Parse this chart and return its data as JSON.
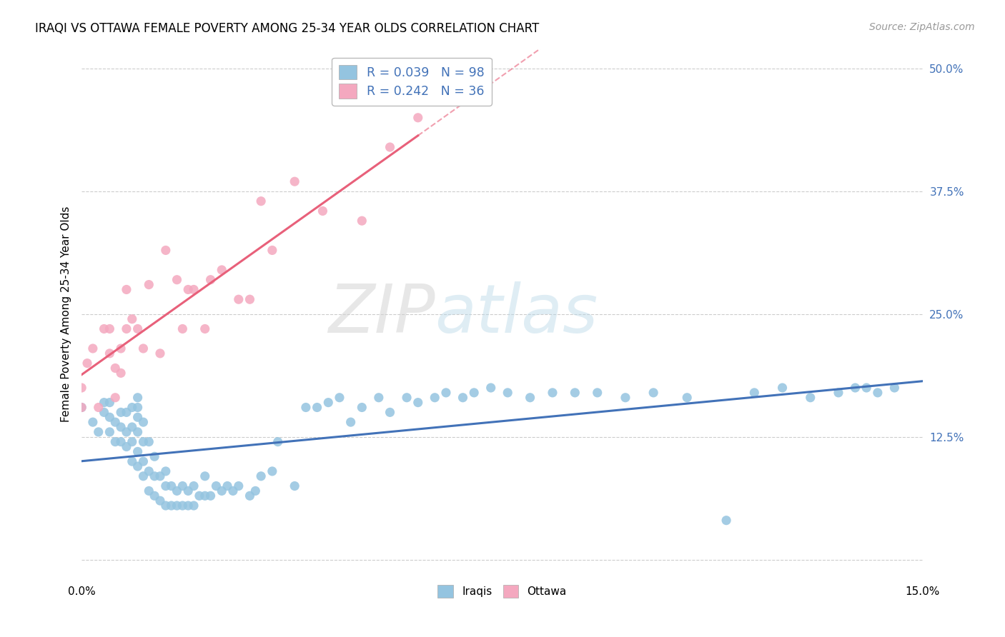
{
  "title": "IRAQI VS OTTAWA FEMALE POVERTY AMONG 25-34 YEAR OLDS CORRELATION CHART",
  "source": "Source: ZipAtlas.com",
  "ylabel": "Female Poverty Among 25-34 Year Olds",
  "xlim": [
    0.0,
    0.15
  ],
  "ylim": [
    -0.02,
    0.52
  ],
  "xtick_positions": [
    0.0,
    0.03,
    0.06,
    0.09,
    0.12,
    0.15
  ],
  "xtick_labels": [
    "0.0%",
    "",
    "",
    "",
    "",
    "15.0%"
  ],
  "ytick_positions": [
    0.0,
    0.125,
    0.25,
    0.375,
    0.5
  ],
  "ytick_labels": [
    "",
    "12.5%",
    "25.0%",
    "37.5%",
    "50.0%"
  ],
  "legend_r1": "0.039",
  "legend_n1": "98",
  "legend_r2": "0.242",
  "legend_n2": "36",
  "iraqis_color": "#94c4e0",
  "ottawa_color": "#f4a8bf",
  "iraqis_edge": "#5a9ec5",
  "ottawa_edge": "#e87499",
  "trend_iraqis_color": "#4272b8",
  "trend_ottawa_color": "#e8607a",
  "text_color": "#4272b8",
  "background_color": "#ffffff",
  "watermark_zip": "ZIP",
  "watermark_atlas": "atlas",
  "iraqis_x": [
    0.0,
    0.002,
    0.003,
    0.004,
    0.004,
    0.005,
    0.005,
    0.005,
    0.006,
    0.006,
    0.007,
    0.007,
    0.007,
    0.008,
    0.008,
    0.008,
    0.009,
    0.009,
    0.009,
    0.009,
    0.01,
    0.01,
    0.01,
    0.01,
    0.01,
    0.01,
    0.011,
    0.011,
    0.011,
    0.011,
    0.012,
    0.012,
    0.012,
    0.013,
    0.013,
    0.013,
    0.014,
    0.014,
    0.015,
    0.015,
    0.015,
    0.016,
    0.016,
    0.017,
    0.017,
    0.018,
    0.018,
    0.019,
    0.019,
    0.02,
    0.02,
    0.021,
    0.022,
    0.022,
    0.023,
    0.024,
    0.025,
    0.026,
    0.027,
    0.028,
    0.03,
    0.031,
    0.032,
    0.034,
    0.035,
    0.038,
    0.04,
    0.042,
    0.044,
    0.046,
    0.048,
    0.05,
    0.053,
    0.055,
    0.058,
    0.06,
    0.063,
    0.065,
    0.068,
    0.07,
    0.073,
    0.076,
    0.08,
    0.084,
    0.088,
    0.092,
    0.097,
    0.102,
    0.108,
    0.115,
    0.12,
    0.125,
    0.13,
    0.135,
    0.138,
    0.14,
    0.142,
    0.145
  ],
  "iraqis_y": [
    0.155,
    0.14,
    0.13,
    0.15,
    0.16,
    0.13,
    0.145,
    0.16,
    0.12,
    0.14,
    0.12,
    0.135,
    0.15,
    0.115,
    0.13,
    0.15,
    0.1,
    0.12,
    0.135,
    0.155,
    0.095,
    0.11,
    0.13,
    0.145,
    0.155,
    0.165,
    0.085,
    0.1,
    0.12,
    0.14,
    0.07,
    0.09,
    0.12,
    0.065,
    0.085,
    0.105,
    0.06,
    0.085,
    0.055,
    0.075,
    0.09,
    0.055,
    0.075,
    0.055,
    0.07,
    0.055,
    0.075,
    0.055,
    0.07,
    0.055,
    0.075,
    0.065,
    0.065,
    0.085,
    0.065,
    0.075,
    0.07,
    0.075,
    0.07,
    0.075,
    0.065,
    0.07,
    0.085,
    0.09,
    0.12,
    0.075,
    0.155,
    0.155,
    0.16,
    0.165,
    0.14,
    0.155,
    0.165,
    0.15,
    0.165,
    0.16,
    0.165,
    0.17,
    0.165,
    0.17,
    0.175,
    0.17,
    0.165,
    0.17,
    0.17,
    0.17,
    0.165,
    0.17,
    0.165,
    0.04,
    0.17,
    0.175,
    0.165,
    0.17,
    0.175,
    0.175,
    0.17,
    0.175
  ],
  "ottawa_x": [
    0.0,
    0.0,
    0.001,
    0.002,
    0.003,
    0.004,
    0.005,
    0.005,
    0.006,
    0.006,
    0.007,
    0.007,
    0.008,
    0.008,
    0.009,
    0.01,
    0.011,
    0.012,
    0.014,
    0.015,
    0.017,
    0.018,
    0.019,
    0.02,
    0.022,
    0.023,
    0.025,
    0.028,
    0.03,
    0.032,
    0.034,
    0.038,
    0.043,
    0.05,
    0.055,
    0.06
  ],
  "ottawa_y": [
    0.155,
    0.175,
    0.2,
    0.215,
    0.155,
    0.235,
    0.21,
    0.235,
    0.165,
    0.195,
    0.19,
    0.215,
    0.235,
    0.275,
    0.245,
    0.235,
    0.215,
    0.28,
    0.21,
    0.315,
    0.285,
    0.235,
    0.275,
    0.275,
    0.235,
    0.285,
    0.295,
    0.265,
    0.265,
    0.365,
    0.315,
    0.385,
    0.355,
    0.345,
    0.42,
    0.45
  ]
}
